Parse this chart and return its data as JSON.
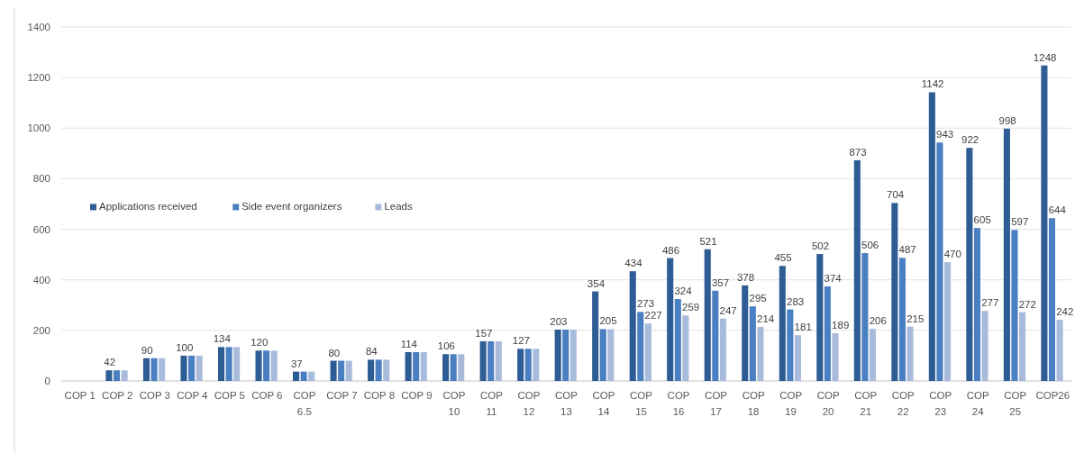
{
  "chart_data": {
    "type": "bar",
    "categories": [
      "COP 1",
      "COP 2",
      "COP 3",
      "COP 4",
      "COP 5",
      "COP 6",
      "COP 6.5",
      "COP 7",
      "COP 8",
      "COP 9",
      "COP 10",
      "COP 11",
      "COP 12",
      "COP 13",
      "COP 14",
      "COP 15",
      "COP 16",
      "COP 17",
      "COP 18",
      "COP 19",
      "COP 20",
      "COP 21",
      "COP 22",
      "COP 23",
      "COP 24",
      "COP 25",
      "COP26"
    ],
    "series": [
      {
        "name": "Applications received",
        "color": "#2e5c94",
        "values": [
          null,
          42,
          90,
          100,
          134,
          120,
          37,
          80,
          84,
          114,
          106,
          157,
          127,
          203,
          354,
          434,
          486,
          521,
          378,
          455,
          502,
          873,
          704,
          1142,
          922,
          998,
          1248
        ],
        "value_labels": [
          null,
          "42",
          "90",
          "100",
          "134",
          "120",
          "37",
          "80",
          "84",
          "114",
          "106",
          "157",
          "127",
          "203",
          "354",
          "434",
          "486",
          "521",
          "378",
          "455",
          "502",
          "873",
          "704",
          "1142",
          "922",
          "998",
          "1248"
        ]
      },
      {
        "name": "Side event organizers",
        "color": "#4a7fc1",
        "values": [
          null,
          42,
          90,
          100,
          134,
          120,
          37,
          80,
          84,
          114,
          106,
          157,
          127,
          203,
          205,
          273,
          324,
          357,
          295,
          283,
          374,
          506,
          487,
          943,
          605,
          597,
          644
        ],
        "value_labels": [
          null,
          null,
          null,
          null,
          null,
          null,
          null,
          null,
          null,
          null,
          null,
          null,
          null,
          null,
          "205",
          "273",
          "324",
          "357",
          "295",
          "283",
          "374",
          "506",
          "487",
          "943",
          "605",
          "597",
          "644"
        ]
      },
      {
        "name": "Leads",
        "color": "#a9bbdb",
        "values": [
          null,
          42,
          90,
          100,
          134,
          120,
          37,
          80,
          84,
          114,
          106,
          157,
          127,
          203,
          205,
          227,
          259,
          247,
          214,
          181,
          189,
          206,
          215,
          470,
          277,
          272,
          242
        ],
        "value_labels": [
          null,
          null,
          null,
          null,
          null,
          null,
          null,
          null,
          null,
          null,
          null,
          null,
          null,
          null,
          null,
          "227",
          "259",
          "247",
          "214",
          "181",
          "189",
          "206",
          "215",
          "470",
          "277",
          "272",
          "242"
        ]
      }
    ],
    "ylim": [
      0,
      1400
    ],
    "yticks": [
      0,
      200,
      400,
      600,
      800,
      1000,
      1200,
      1400
    ],
    "grid": "y",
    "legend": "left"
  }
}
